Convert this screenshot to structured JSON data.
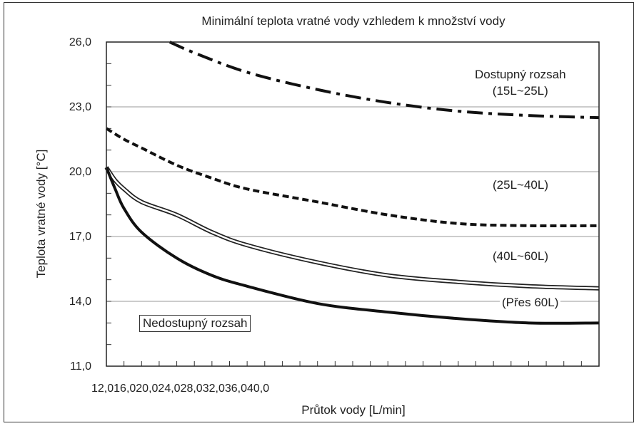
{
  "chart_data": {
    "type": "line",
    "title": "Minimální teplota vratné vody vzhledem k množství vody",
    "xlabel": "Průtok vody [L/min]",
    "ylabel": "Teplota vratné vody [°C]",
    "x_tick_labels_text": "12,016,020,024,028,032,036,040,0",
    "x_ticks": [
      12.0,
      16.0,
      20.0,
      24.0,
      28.0,
      32.0,
      36.0,
      40.0
    ],
    "y_tick_labels": [
      "26,0",
      "23,0",
      "20,0",
      "17,0",
      "14,0",
      "11,0"
    ],
    "y_ticks": [
      26,
      23,
      20,
      17,
      14,
      11
    ],
    "ylim": [
      11,
      26
    ],
    "xlim": [
      12,
      40
    ],
    "grid": "horizontal",
    "annotations": {
      "available_line1": "Dostupný rozsah",
      "available_line2": "(15L~25L)",
      "range_25_40": "(25L~40L)",
      "range_40_60": "(40L~60L)",
      "range_over_60": "(Přes 60L)",
      "unavailable": "Nedostupný rozsah"
    },
    "series": [
      {
        "style": "dash-dot",
        "x": [
          15.6,
          17,
          20,
          24,
          28,
          32,
          36,
          40
        ],
        "y": [
          26.0,
          25.5,
          24.6,
          23.8,
          23.2,
          22.8,
          22.6,
          22.5
        ]
      },
      {
        "style": "dashed",
        "x": [
          12,
          13,
          14,
          16,
          18,
          20,
          24,
          28,
          32,
          36,
          40
        ],
        "y": [
          22.0,
          21.5,
          21.1,
          20.3,
          19.7,
          19.2,
          18.6,
          18.0,
          17.6,
          17.5,
          17.5
        ]
      },
      {
        "style": "double-line",
        "x": [
          12,
          12.5,
          13,
          14,
          16,
          18,
          20,
          24,
          28,
          32,
          36,
          40
        ],
        "y": [
          20.2,
          19.6,
          19.2,
          18.6,
          18.0,
          17.2,
          16.6,
          15.8,
          15.2,
          14.9,
          14.7,
          14.6
        ]
      },
      {
        "style": "solid-thick",
        "x": [
          12,
          12.5,
          13,
          14,
          16,
          18,
          20,
          24,
          28,
          32,
          36,
          40
        ],
        "y": [
          20.2,
          19.2,
          18.3,
          17.2,
          16.0,
          15.2,
          14.7,
          13.9,
          13.5,
          13.2,
          13.0,
          13.0
        ]
      }
    ]
  }
}
